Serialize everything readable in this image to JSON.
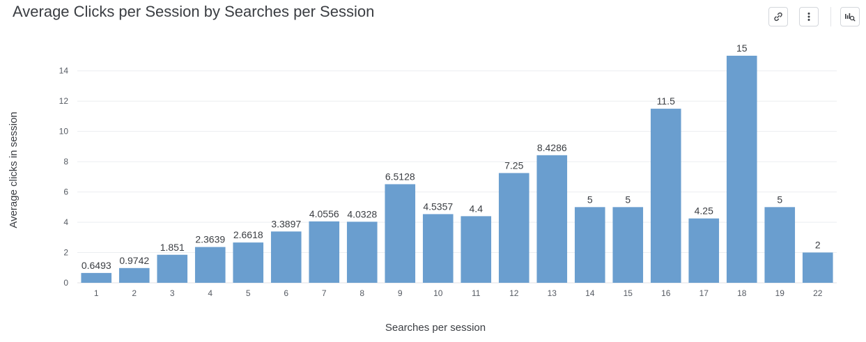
{
  "title": "Average Clicks per Session by Searches per Session",
  "toolbar": {
    "icons": [
      "link-icon",
      "more-vertical-icon",
      "explore-data-icon"
    ]
  },
  "colors": {
    "bar": "#6a9ecf",
    "grid": "#ebedf0",
    "text": "#3a3d42"
  },
  "chart_data": {
    "type": "bar",
    "xlabel": "Searches per session",
    "ylabel": "Average clicks in session",
    "ylim": [
      0,
      15
    ],
    "yticks": [
      0,
      2,
      4,
      6,
      8,
      10,
      12,
      14
    ],
    "grid": true,
    "categories": [
      "1",
      "2",
      "3",
      "4",
      "5",
      "6",
      "7",
      "8",
      "9",
      "10",
      "11",
      "12",
      "13",
      "14",
      "15",
      "16",
      "17",
      "18",
      "19",
      "22"
    ],
    "values": [
      0.6493,
      0.9742,
      1.851,
      2.3639,
      2.6618,
      3.3897,
      4.0556,
      4.0328,
      6.5128,
      4.5357,
      4.4,
      7.25,
      8.4286,
      5,
      5,
      11.5,
      4.25,
      15,
      5,
      2
    ],
    "data_labels": [
      "0.6493",
      "0.9742",
      "1.851",
      "2.3639",
      "2.6618",
      "3.3897",
      "4.0556",
      "4.0328",
      "6.5128",
      "4.5357",
      "4.4",
      "7.25",
      "8.4286",
      "5",
      "5",
      "11.5",
      "4.25",
      "15",
      "5",
      "2"
    ]
  }
}
